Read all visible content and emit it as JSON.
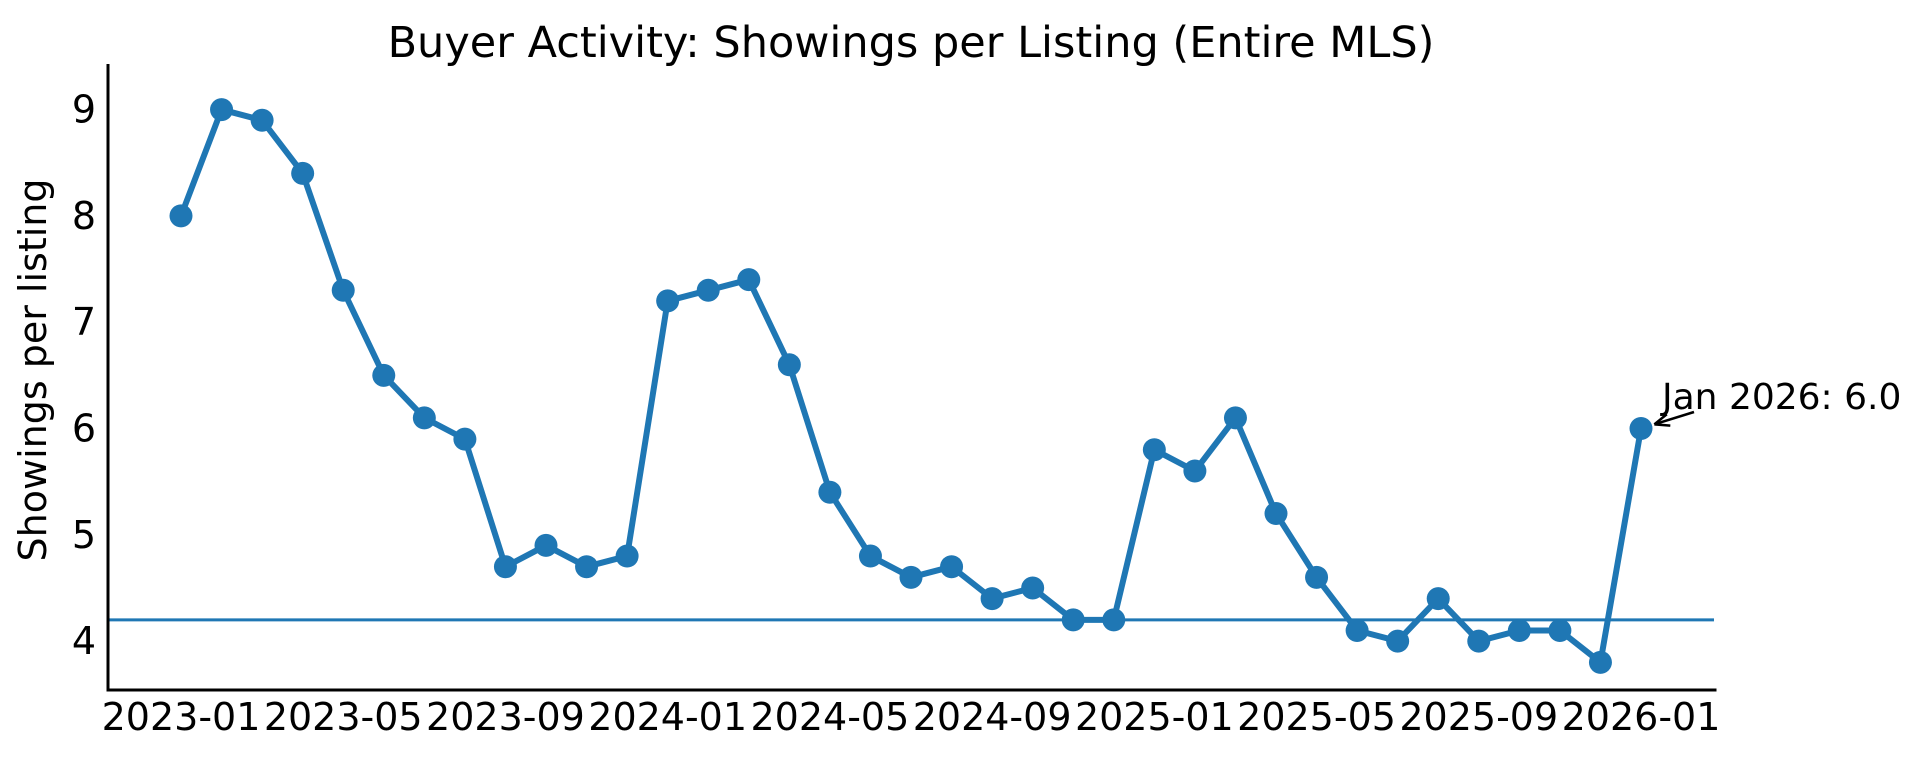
{
  "chart_data": {
    "type": "line",
    "title": "Buyer Activity: Showings per Listing (Entire MLS)",
    "xlabel": "",
    "ylabel": "Showings per listing",
    "x": [
      "2023-01",
      "2023-02",
      "2023-03",
      "2023-04",
      "2023-05",
      "2023-06",
      "2023-07",
      "2023-08",
      "2023-09",
      "2023-10",
      "2023-11",
      "2023-12",
      "2024-01",
      "2024-02",
      "2024-03",
      "2024-04",
      "2024-05",
      "2024-06",
      "2024-07",
      "2024-08",
      "2024-09",
      "2024-10",
      "2024-11",
      "2024-12",
      "2025-01",
      "2025-02",
      "2025-03",
      "2025-04",
      "2025-05",
      "2025-06",
      "2025-07",
      "2025-08",
      "2025-09",
      "2025-10",
      "2025-11",
      "2025-12",
      "2026-01"
    ],
    "values": [
      8.0,
      9.0,
      8.9,
      8.4,
      7.3,
      6.5,
      6.1,
      5.9,
      4.7,
      4.9,
      4.7,
      4.8,
      7.2,
      7.3,
      7.4,
      6.6,
      5.4,
      4.8,
      4.6,
      4.7,
      4.4,
      4.5,
      4.2,
      4.2,
      5.8,
      5.6,
      6.1,
      5.2,
      4.6,
      4.1,
      4.0,
      4.4,
      4.0,
      4.1,
      4.1,
      3.8,
      6.0
    ],
    "xticks": [
      "2023-01",
      "2023-05",
      "2023-09",
      "2024-01",
      "2024-05",
      "2024-09",
      "2025-01",
      "2025-05",
      "2025-09",
      "2026-01"
    ],
    "yticks": [
      4,
      5,
      6,
      7,
      8,
      9
    ],
    "ylim": [
      3.54,
      9.41
    ],
    "grid": false,
    "baseline": {
      "value": 4.2
    },
    "annotation": {
      "label": "Jan 2026: 6.0",
      "target_x": "2026-01",
      "target_y": 6.0
    },
    "colors": {
      "line": "#1f77b4",
      "baseline": "#1f77b4",
      "text": "#000000",
      "background": "#ffffff"
    },
    "marker": "circle",
    "legend_position": "none"
  }
}
